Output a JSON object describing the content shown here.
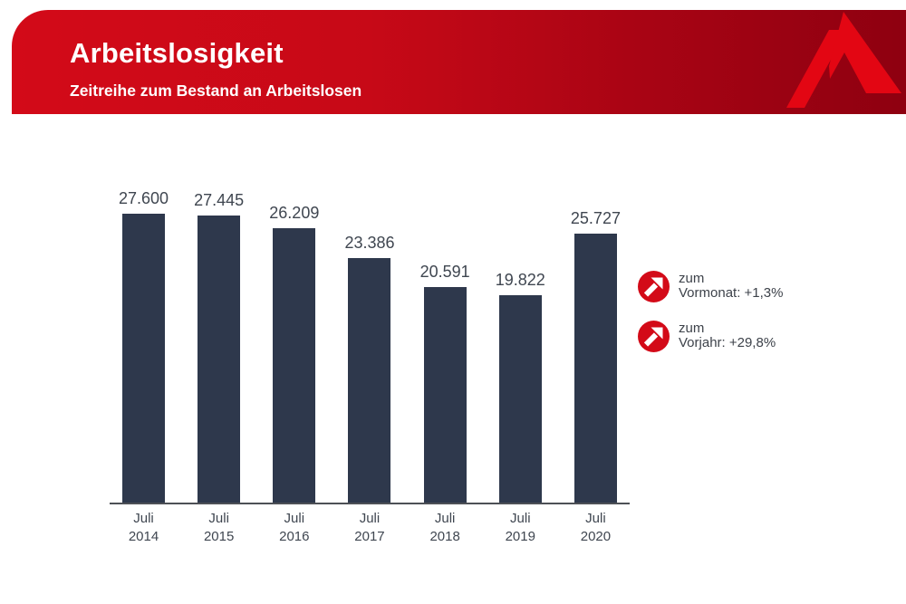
{
  "header": {
    "title": "Arbeitslosigkeit",
    "subtitle": "Zeitreihe zum Bestand an Arbeitslosen",
    "brand_red": "#d30a18",
    "brand_red_dark": "#8e0010",
    "logo_red": "#e30613",
    "text_color": "#ffffff"
  },
  "chart_data": {
    "type": "bar",
    "title": "Zeitreihe zum Bestand an Arbeitslosen",
    "categories": [
      "Juli 2014",
      "Juli 2015",
      "Juli 2016",
      "Juli 2017",
      "Juli 2018",
      "Juli 2019",
      "Juli 2020"
    ],
    "ticks": [
      {
        "month": "Juli",
        "year": "2014"
      },
      {
        "month": "Juli",
        "year": "2015"
      },
      {
        "month": "Juli",
        "year": "2016"
      },
      {
        "month": "Juli",
        "year": "2017"
      },
      {
        "month": "Juli",
        "year": "2018"
      },
      {
        "month": "Juli",
        "year": "2019"
      },
      {
        "month": "Juli",
        "year": "2020"
      }
    ],
    "values": [
      27600,
      27445,
      26209,
      23386,
      20591,
      19822,
      25727
    ],
    "value_labels": [
      "27.600",
      "27.445",
      "26.209",
      "23.386",
      "20.591",
      "19.822",
      "25.727"
    ],
    "bar_color": "#2e384c",
    "label_color": "#3f4650",
    "axis_color": "#4d5056",
    "xlabel": "",
    "ylabel": "",
    "ylim": [
      0,
      28000
    ],
    "grid": false,
    "legend": "none"
  },
  "badges": [
    {
      "line1": "zum",
      "line2": "Vormonat: +1,3%",
      "icon": "arrow-up-right-icon",
      "circle_color": "#d30a18",
      "arrow_color": "#ffffff"
    },
    {
      "line1": "zum",
      "line2": "Vorjahr: +29,8%",
      "icon": "arrow-up-right-icon",
      "circle_color": "#d30a18",
      "arrow_color": "#ffffff"
    }
  ]
}
